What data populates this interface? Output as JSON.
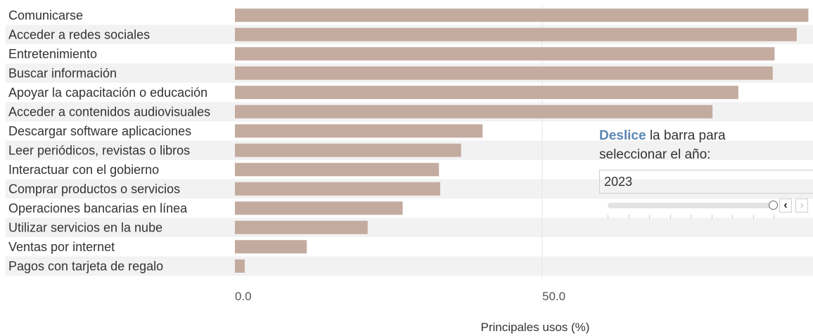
{
  "chart_data": {
    "type": "bar",
    "orientation": "horizontal",
    "categories": [
      "Comunicarse",
      "Acceder a redes sociales",
      "Entretenimiento",
      "Buscar información",
      "Apoyar la capacitación o educación",
      "Acceder a contenidos audiovisuales",
      "Descargar software aplicaciones",
      "Leer periódicos, revistas o libros",
      "Interactuar con el gobierno",
      "Comprar productos o servicios",
      "Operaciones bancarias en línea",
      "Utilizar servicios en la nube",
      "Ventas por internet",
      "Pagos con tarjeta de regalo"
    ],
    "values": [
      93.3,
      91.4,
      87.8,
      87.5,
      81.9,
      77.7,
      40.3,
      36.8,
      33.2,
      33.4,
      27.3,
      21.6,
      11.7,
      1.6
    ],
    "xlim": [
      0,
      94
    ],
    "xticks": [
      "0.0",
      "50.0"
    ],
    "xlabel": "Principales usos (%)",
    "bar_color": "#c4aba0",
    "stripe_color": "#f2f2f2",
    "grid": "vertical line at 50"
  },
  "slider": {
    "prompt_accent": "Deslice",
    "prompt_rest": " la barra para",
    "prompt_line2": "seleccionar el año:",
    "year": "2023",
    "prev_icon": "‹",
    "next_icon": "›"
  }
}
